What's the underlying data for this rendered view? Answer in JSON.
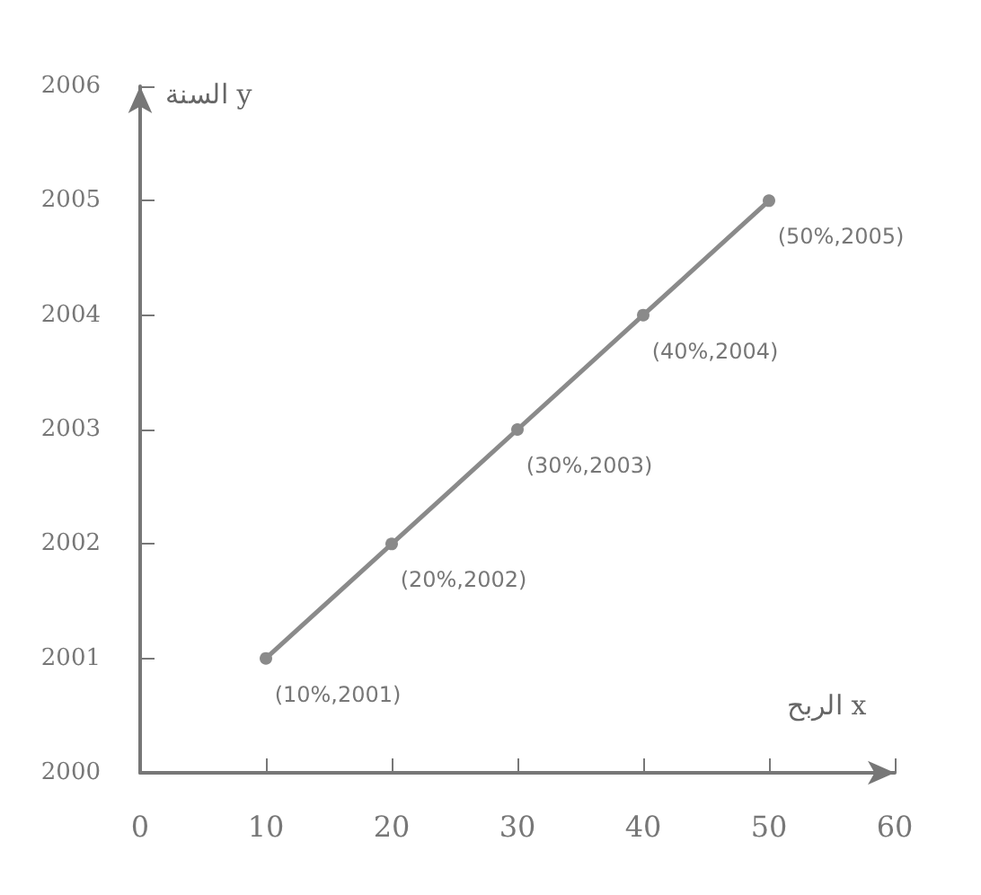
{
  "chart_data": {
    "type": "line",
    "xlabel": "الربح x",
    "ylabel": "السنة y",
    "x": [
      10,
      20,
      30,
      40,
      50
    ],
    "series": [
      {
        "color": "#8a8a8a",
        "values": [
          2001,
          2002,
          2003,
          2004,
          2005
        ]
      }
    ],
    "xlim": [
      0,
      60
    ],
    "xticks": [
      0,
      10,
      20,
      30,
      40,
      50,
      60
    ],
    "ylim": [
      2000,
      2006
    ],
    "yticks": [
      2000,
      2001,
      2002,
      2003,
      2004,
      2005,
      2006
    ],
    "grid": false,
    "marker": "circle",
    "line_style": "solid",
    "annotations": [
      {
        "text": "(10%,2001)",
        "x": 10,
        "y": 2001
      },
      {
        "text": "(20%,2002)",
        "x": 20,
        "y": 2002
      },
      {
        "text": "(30%,2003)",
        "x": 30,
        "y": 2003
      },
      {
        "text": "(40%,2004)",
        "x": 40,
        "y": 2004
      },
      {
        "text": "(50%,2005)",
        "x": 50,
        "y": 2005
      }
    ]
  }
}
